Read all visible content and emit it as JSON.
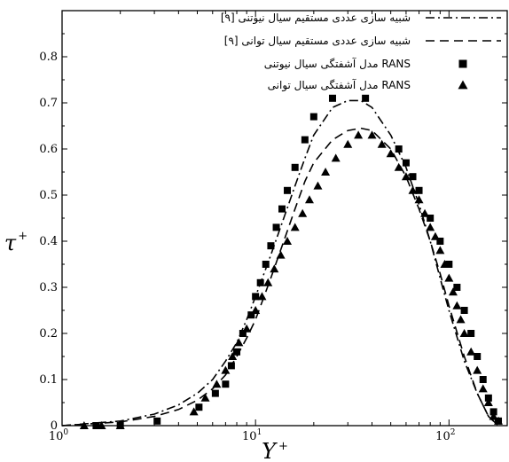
{
  "chart_data": {
    "type": "scatter",
    "title": "",
    "xlabel": "Y",
    "xlabel_superscript": "+",
    "ylabel": "τ",
    "ylabel_superscript": "+",
    "xscale": "log",
    "xlim": [
      1,
      200
    ],
    "ylim": [
      0,
      0.9
    ],
    "grid": false,
    "legend_position": "top-right",
    "x_ticks": [
      {
        "value": 1,
        "base": "10",
        "exp": "0"
      },
      {
        "value": 10,
        "base": "10",
        "exp": "1"
      },
      {
        "value": 100,
        "base": "10",
        "exp": "2"
      }
    ],
    "y_ticks": [
      {
        "value": 0,
        "label": "0"
      },
      {
        "value": 0.1,
        "label": "0.1"
      },
      {
        "value": 0.2,
        "label": "0.2"
      },
      {
        "value": 0.3,
        "label": "0.3"
      },
      {
        "value": 0.4,
        "label": "0.4"
      },
      {
        "value": 0.5,
        "label": "0.5"
      },
      {
        "value": 0.6,
        "label": "0.6"
      },
      {
        "value": 0.7,
        "label": "0.7"
      },
      {
        "value": 0.8,
        "label": "0.8"
      }
    ],
    "series": [
      {
        "name": "شبیه سازی عددی مستقیم سیال نیوتنی [۹]",
        "style": "dash-dot-line",
        "color": "#000000",
        "x": [
          1,
          2,
          3,
          4,
          5,
          6,
          7,
          8,
          9,
          10,
          12,
          14,
          16,
          18,
          20,
          25,
          30,
          35,
          40,
          50,
          60,
          70,
          80,
          90,
          100,
          120,
          140,
          160,
          180
        ],
        "y": [
          0.0,
          0.01,
          0.025,
          0.045,
          0.07,
          0.1,
          0.14,
          0.18,
          0.23,
          0.28,
          0.37,
          0.45,
          0.52,
          0.58,
          0.63,
          0.69,
          0.705,
          0.705,
          0.69,
          0.63,
          0.56,
          0.48,
          0.4,
          0.32,
          0.25,
          0.14,
          0.07,
          0.02,
          0.0
        ]
      },
      {
        "name": "شبیه سازی عددی مستقیم سیال توانی [۹]",
        "style": "dashed-line",
        "color": "#000000",
        "x": [
          1,
          2,
          3,
          4,
          5,
          6,
          7,
          8,
          9,
          10,
          12,
          14,
          16,
          18,
          20,
          25,
          30,
          35,
          40,
          50,
          60,
          70,
          80,
          90,
          100,
          120,
          140,
          160,
          180
        ],
        "y": [
          0.0,
          0.008,
          0.02,
          0.035,
          0.055,
          0.08,
          0.11,
          0.15,
          0.19,
          0.23,
          0.32,
          0.4,
          0.47,
          0.53,
          0.57,
          0.62,
          0.64,
          0.645,
          0.64,
          0.6,
          0.54,
          0.47,
          0.4,
          0.33,
          0.26,
          0.15,
          0.07,
          0.02,
          0.0
        ]
      },
      {
        "name": "مدل آشفتگی سیال نیوتنی RANS",
        "style": "square-markers",
        "color": "#000000",
        "x": [
          1.5,
          2,
          3.1,
          5.1,
          6.2,
          7,
          7.5,
          8,
          8.6,
          9.5,
          10,
          10.6,
          11.3,
          12,
          12.8,
          13.7,
          14.6,
          16,
          18,
          20,
          25,
          37,
          55,
          60,
          65,
          70,
          80,
          90,
          100,
          110,
          120,
          130,
          140,
          150,
          160,
          170,
          180
        ],
        "y": [
          0.0,
          0.0,
          0.01,
          0.04,
          0.07,
          0.09,
          0.13,
          0.16,
          0.2,
          0.24,
          0.28,
          0.31,
          0.35,
          0.39,
          0.43,
          0.47,
          0.51,
          0.56,
          0.62,
          0.67,
          0.71,
          0.71,
          0.6,
          0.57,
          0.54,
          0.51,
          0.45,
          0.4,
          0.35,
          0.3,
          0.25,
          0.2,
          0.15,
          0.1,
          0.06,
          0.03,
          0.01
        ]
      },
      {
        "name": "مدل آشفتگی سیال توانی RANS",
        "style": "triangle-markers",
        "color": "#000000",
        "x": [
          1.3,
          1.6,
          2,
          4.8,
          5.5,
          6.3,
          7,
          7.6,
          8.2,
          9,
          10,
          10.8,
          11.6,
          12.5,
          13.5,
          14.6,
          16,
          17.5,
          19,
          21,
          23,
          26,
          30,
          34,
          40,
          45,
          50,
          55,
          60,
          65,
          70,
          75,
          80,
          85,
          90,
          95,
          100,
          105,
          110,
          115,
          120,
          130,
          140,
          150,
          160,
          170,
          180
        ],
        "y": [
          0.0,
          0.0,
          0.0,
          0.03,
          0.06,
          0.09,
          0.12,
          0.15,
          0.18,
          0.21,
          0.25,
          0.28,
          0.31,
          0.34,
          0.37,
          0.4,
          0.43,
          0.46,
          0.49,
          0.52,
          0.55,
          0.58,
          0.61,
          0.63,
          0.63,
          0.61,
          0.59,
          0.56,
          0.54,
          0.51,
          0.49,
          0.46,
          0.43,
          0.41,
          0.38,
          0.35,
          0.32,
          0.29,
          0.26,
          0.23,
          0.2,
          0.16,
          0.12,
          0.08,
          0.05,
          0.02,
          0.01
        ]
      }
    ]
  }
}
